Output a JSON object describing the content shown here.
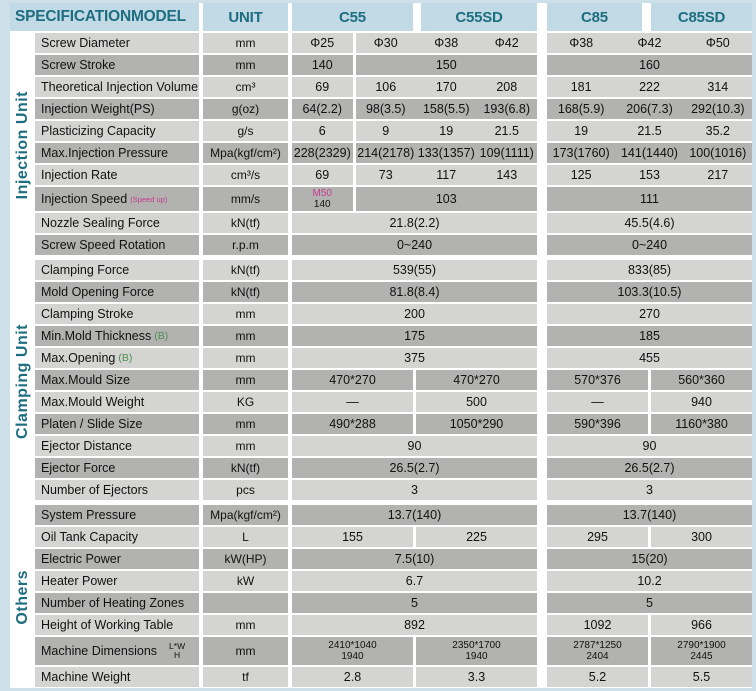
{
  "colors": {
    "page_bg": "#cddfe8",
    "header_bg": "#c2dae5",
    "teal": "#1d6e80",
    "row_light": "#d4d4d2",
    "row_dark": "#b2b2b0",
    "text": "#111111",
    "pink": "#c73a90",
    "green": "#4f8f52"
  },
  "header": {
    "spec_label": "SPECIFICATION",
    "model_label": "MODEL",
    "unit_label": "UNIT",
    "models": [
      "C55",
      "C55SD",
      "C85",
      "C85SD"
    ]
  },
  "sections": [
    {
      "name": "Injection Unit",
      "rows": [
        {
          "label": "Screw Diameter",
          "unit": "mm",
          "left": [
            {
              "t": "Φ25",
              "s": 1
            },
            {
              "t": "Φ30",
              "s": 1,
              "g": 1
            },
            {
              "t": "Φ38",
              "s": 1
            },
            {
              "t": "Φ42",
              "s": 1
            }
          ],
          "right": [
            {
              "t": "Φ38",
              "s": 1
            },
            {
              "t": "Φ42",
              "s": 1
            },
            {
              "t": "Φ50",
              "s": 1
            }
          ]
        },
        {
          "label": "Screw Stroke",
          "unit": "mm",
          "left": [
            {
              "t": "140",
              "s": 1
            },
            {
              "t": "150",
              "s": 3,
              "g": 1
            }
          ],
          "right": [
            {
              "t": "160",
              "s": 3
            }
          ]
        },
        {
          "label": "Theoretical Injection Volume",
          "unit": "cm³",
          "left": [
            {
              "t": "69",
              "s": 1
            },
            {
              "t": "106",
              "s": 1,
              "g": 1
            },
            {
              "t": "170",
              "s": 1
            },
            {
              "t": "208",
              "s": 1
            }
          ],
          "right": [
            {
              "t": "181",
              "s": 1
            },
            {
              "t": "222",
              "s": 1
            },
            {
              "t": "314",
              "s": 1
            }
          ]
        },
        {
          "label": "Injection Weight(PS)",
          "unit": "g(oz)",
          "left": [
            {
              "t": "64(2.2)",
              "s": 1
            },
            {
              "t": "98(3.5)",
              "s": 1,
              "g": 1
            },
            {
              "t": "158(5.5)",
              "s": 1
            },
            {
              "t": "193(6.8)",
              "s": 1
            }
          ],
          "right": [
            {
              "t": "168(5.9)",
              "s": 1
            },
            {
              "t": "206(7.3)",
              "s": 1
            },
            {
              "t": "292(10.3)",
              "s": 1
            }
          ]
        },
        {
          "label": "Plasticizing Capacity",
          "unit": "g/s",
          "left": [
            {
              "t": "6",
              "s": 1
            },
            {
              "t": "9",
              "s": 1,
              "g": 1
            },
            {
              "t": "19",
              "s": 1
            },
            {
              "t": "21.5",
              "s": 1
            }
          ],
          "right": [
            {
              "t": "19",
              "s": 1
            },
            {
              "t": "21.5",
              "s": 1
            },
            {
              "t": "35.2",
              "s": 1
            }
          ]
        },
        {
          "label": "Max.Injection Pressure",
          "unit": "Mpa(kgf/cm²)",
          "left": [
            {
              "t": "228(2329)",
              "s": 1
            },
            {
              "t": "214(2178)",
              "s": 1,
              "g": 1
            },
            {
              "t": "133(1357)",
              "s": 1
            },
            {
              "t": "109(1111)",
              "s": 1
            }
          ],
          "right": [
            {
              "t": "173(1760)",
              "s": 1
            },
            {
              "t": "141(1440)",
              "s": 1
            },
            {
              "t": "100(1016)",
              "s": 1
            }
          ]
        },
        {
          "label": "Injection Rate",
          "unit": "cm³/s",
          "left": [
            {
              "t": "69",
              "s": 1
            },
            {
              "t": "73",
              "s": 1,
              "g": 1
            },
            {
              "t": "117",
              "s": 1
            },
            {
              "t": "143",
              "s": 1
            }
          ],
          "right": [
            {
              "t": "125",
              "s": 1
            },
            {
              "t": "153",
              "s": 1
            },
            {
              "t": "217",
              "s": 1
            }
          ]
        },
        {
          "label": "Injection Speed",
          "sfx": "(Speed up)",
          "sfxc": "pink",
          "unit": "mm/s",
          "h": "speed",
          "left": [
            {
              "lines": [
                "M50",
                "140"
              ],
              "lc": "pink",
              "s": 1
            },
            {
              "t": "103",
              "s": 3,
              "g": 1
            }
          ],
          "right": [
            {
              "t": "111",
              "s": 3
            }
          ]
        },
        {
          "label": "Nozzle Sealing Force",
          "unit": "kN(tf)",
          "left": [
            {
              "t": "21.8(2.2)",
              "s": 4
            }
          ],
          "right": [
            {
              "t": "45.5(4.6)",
              "s": 3
            }
          ]
        },
        {
          "label": "Screw Speed Rotation",
          "unit": "r.p.m",
          "left": [
            {
              "t": "0~240",
              "s": 4
            }
          ],
          "right": [
            {
              "t": "0~240",
              "s": 3
            }
          ]
        }
      ]
    },
    {
      "name": "Clamping Unit",
      "rows": [
        {
          "label": "Clamping Force",
          "unit": "kN(tf)",
          "left": [
            {
              "t": "539(55)",
              "s": 4
            }
          ],
          "right": [
            {
              "t": "833(85)",
              "s": 3
            }
          ]
        },
        {
          "label": "Mold Opening Force",
          "unit": "kN(tf)",
          "left": [
            {
              "t": "81.8(8.4)",
              "s": 4
            }
          ],
          "right": [
            {
              "t": "103.3(10.5)",
              "s": 3
            }
          ]
        },
        {
          "label": "Clamping Stroke",
          "unit": "mm",
          "left": [
            {
              "t": "200",
              "s": 4
            }
          ],
          "right": [
            {
              "t": "270",
              "s": 3
            }
          ]
        },
        {
          "label": "Min.Mold Thickness",
          "sfx": "(B)",
          "sfxc": "green",
          "unit": "mm",
          "left": [
            {
              "t": "175",
              "s": 4
            }
          ],
          "right": [
            {
              "t": "185",
              "s": 3
            }
          ]
        },
        {
          "label": "Max.Opening",
          "sfx": "(B)",
          "sfxc": "green",
          "unit": "mm",
          "left": [
            {
              "t": "375",
              "s": 4
            }
          ],
          "right": [
            {
              "t": "455",
              "s": 3
            }
          ]
        },
        {
          "label": "Max.Mould Size",
          "unit": "mm",
          "left": [
            {
              "t": "470*270",
              "s": 2
            },
            {
              "t": "470*270",
              "s": 2,
              "g": 1
            }
          ],
          "right": [
            {
              "t": "570*376",
              "s": 1.5
            },
            {
              "t": "560*360",
              "s": 1.5,
              "g": 1
            }
          ]
        },
        {
          "label": "Max.Mould Weight",
          "unit": "KG",
          "left": [
            {
              "t": "—",
              "s": 2
            },
            {
              "t": "500",
              "s": 2,
              "g": 1
            }
          ],
          "right": [
            {
              "t": "—",
              "s": 1.5
            },
            {
              "t": "940",
              "s": 1.5,
              "g": 1
            }
          ]
        },
        {
          "label": "Platen / Slide Size",
          "unit": "mm",
          "left": [
            {
              "t": "490*288",
              "s": 2
            },
            {
              "t": "1050*290",
              "s": 2,
              "g": 1
            }
          ],
          "right": [
            {
              "t": "590*396",
              "s": 1.5
            },
            {
              "t": "1160*380",
              "s": 1.5,
              "g": 1
            }
          ]
        },
        {
          "label": "Ejector Distance",
          "unit": "mm",
          "left": [
            {
              "t": "90",
              "s": 4
            }
          ],
          "right": [
            {
              "t": "90",
              "s": 3
            }
          ]
        },
        {
          "label": "Ejector Force",
          "unit": "kN(tf)",
          "left": [
            {
              "t": "26.5(2.7)",
              "s": 4
            }
          ],
          "right": [
            {
              "t": "26.5(2.7)",
              "s": 3
            }
          ]
        },
        {
          "label": "Number of Ejectors",
          "unit": "pcs",
          "left": [
            {
              "t": "3",
              "s": 4
            }
          ],
          "right": [
            {
              "t": "3",
              "s": 3
            }
          ]
        }
      ]
    },
    {
      "name": "Others",
      "rows": [
        {
          "label": "System Pressure",
          "unit": "Mpa(kgf/cm²)",
          "left": [
            {
              "t": "13.7(140)",
              "s": 4
            }
          ],
          "right": [
            {
              "t": "13.7(140)",
              "s": 3
            }
          ]
        },
        {
          "label": "Oil Tank Capacity",
          "unit": "L",
          "left": [
            {
              "t": "155",
              "s": 2
            },
            {
              "t": "225",
              "s": 2,
              "g": 1
            }
          ],
          "right": [
            {
              "t": "295",
              "s": 1.5
            },
            {
              "t": "300",
              "s": 1.5,
              "g": 1
            }
          ]
        },
        {
          "label": "Electric Power",
          "unit": "kW(HP)",
          "left": [
            {
              "t": "7.5(10)",
              "s": 4
            }
          ],
          "right": [
            {
              "t": "15(20)",
              "s": 3
            }
          ]
        },
        {
          "label": "Heater Power",
          "unit": "kW",
          "left": [
            {
              "t": "6.7",
              "s": 4
            }
          ],
          "right": [
            {
              "t": "10.2",
              "s": 3
            }
          ]
        },
        {
          "label": "Number of Heating Zones",
          "unit": "",
          "left": [
            {
              "t": "5",
              "s": 4
            }
          ],
          "right": [
            {
              "t": "5",
              "s": 3
            }
          ]
        },
        {
          "label": "Height of Working Table",
          "unit": "mm",
          "left": [
            {
              "t": "892",
              "s": 4
            }
          ],
          "right": [
            {
              "t": "1092",
              "s": 1.5
            },
            {
              "t": "966",
              "s": 1.5,
              "g": 1
            }
          ]
        },
        {
          "label": "Machine Dimensions",
          "stack": [
            "L*W",
            "H"
          ],
          "unit": "mm",
          "h": "tall",
          "left": [
            {
              "lines": [
                "2410*1040",
                "1940"
              ],
              "s": 2
            },
            {
              "lines": [
                "2350*1700",
                "1940"
              ],
              "s": 2,
              "g": 1
            }
          ],
          "right": [
            {
              "lines": [
                "2787*1250",
                "2404"
              ],
              "s": 1.5
            },
            {
              "lines": [
                "2790*1900",
                "2445"
              ],
              "s": 1.5,
              "g": 1
            }
          ]
        },
        {
          "label": "Machine Weight",
          "unit": "tf",
          "left": [
            {
              "t": "2.8",
              "s": 2
            },
            {
              "t": "3.3",
              "s": 2,
              "g": 1
            }
          ],
          "right": [
            {
              "t": "5.2",
              "s": 1.5
            },
            {
              "t": "5.5",
              "s": 1.5,
              "g": 1
            }
          ]
        }
      ]
    }
  ]
}
